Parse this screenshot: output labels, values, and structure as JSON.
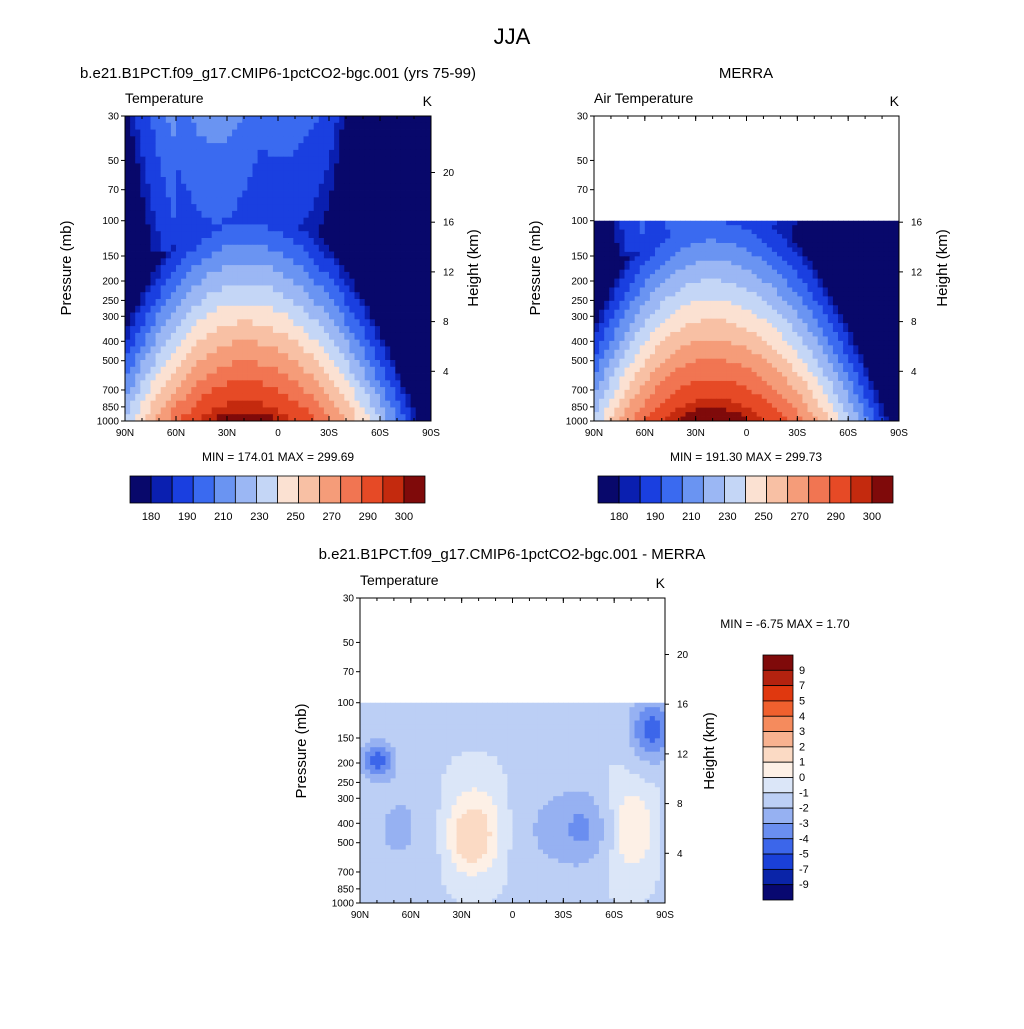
{
  "figure": {
    "title": "JJA"
  },
  "panels": [
    {
      "id": "model",
      "title": "b.e21.B1PCT.f09_g17.CMIP6-1pctCO2-bgc.001 (yrs 75-99)",
      "left_label": "Temperature",
      "right_label": "K",
      "ylabel": "Pressure (mb)",
      "ylabel_right": "Height (km)",
      "minmax": "MIN = 174.01  MAX = 299.69"
    },
    {
      "id": "obs",
      "title": "MERRA",
      "left_label": "Air Temperature",
      "right_label": "K",
      "ylabel": "Pressure (mb)",
      "ylabel_right": "Height (km)",
      "minmax": "MIN = 191.30  MAX = 299.73"
    },
    {
      "id": "diff",
      "title": "b.e21.B1PCT.f09_g17.CMIP6-1pctCO2-bgc.001 - MERRA",
      "left_label": "Temperature",
      "right_label": "K",
      "ylabel": "Pressure (mb)",
      "ylabel_right": "Height (km)",
      "minmax": "MIN =  -6.75  MAX =   1.70"
    }
  ],
  "chart_data": [
    {
      "type": "heatmap",
      "title": "b.e21.B1PCT.f09_g17.CMIP6-1pctCO2-bgc.001 (yrs 75-99)",
      "field": "Temperature",
      "units": "K",
      "xlabel": "",
      "ylabel": "Pressure (mb)",
      "ylabel_right": "Height (km)",
      "x_ticks": [
        "90N",
        "60N",
        "30N",
        "0",
        "30S",
        "60S",
        "90S"
      ],
      "y_ticks": [
        30,
        50,
        70,
        100,
        150,
        200,
        250,
        300,
        400,
        500,
        700,
        850,
        1000
      ],
      "y_right_ticks": [
        20,
        16,
        12,
        8,
        4
      ],
      "min": 174.01,
      "max": 299.69,
      "colorbar_ticks": [
        180,
        190,
        210,
        230,
        250,
        270,
        290,
        300
      ],
      "y_range_mb": [
        30,
        1000
      ],
      "data_top_mb": 30
    },
    {
      "type": "heatmap",
      "title": "MERRA",
      "field": "Air Temperature",
      "units": "K",
      "xlabel": "",
      "ylabel": "Pressure (mb)",
      "ylabel_right": "Height (km)",
      "x_ticks": [
        "90N",
        "60N",
        "30N",
        "0",
        "30S",
        "60S",
        "90S"
      ],
      "y_ticks": [
        30,
        50,
        70,
        100,
        150,
        200,
        250,
        300,
        400,
        500,
        700,
        850,
        1000
      ],
      "y_right_ticks": [
        16,
        12,
        8,
        4
      ],
      "min": 191.3,
      "max": 299.73,
      "colorbar_ticks": [
        180,
        190,
        210,
        230,
        250,
        270,
        290,
        300
      ],
      "y_range_mb": [
        30,
        1000
      ],
      "data_top_mb": 100
    },
    {
      "type": "heatmap",
      "title": "b.e21.B1PCT.f09_g17.CMIP6-1pctCO2-bgc.001 - MERRA",
      "field": "Temperature",
      "units": "K",
      "xlabel": "",
      "ylabel": "Pressure (mb)",
      "ylabel_right": "Height (km)",
      "x_ticks": [
        "90N",
        "60N",
        "30N",
        "0",
        "30S",
        "60S",
        "90S"
      ],
      "y_ticks": [
        30,
        50,
        70,
        100,
        150,
        200,
        250,
        300,
        400,
        500,
        700,
        850,
        1000
      ],
      "y_right_ticks": [
        20,
        16,
        12,
        8,
        4
      ],
      "min": -6.75,
      "max": 1.7,
      "colorbar_ticks": [
        9,
        7,
        5,
        4,
        3,
        2,
        1,
        0,
        -1,
        -2,
        -3,
        -4,
        -5,
        -7,
        -9
      ],
      "y_range_mb": [
        30,
        1000
      ],
      "data_top_mb": 100
    }
  ],
  "colors": {
    "abs_scale": [
      "#08086b",
      "#0a1fb0",
      "#1a3fe0",
      "#3a6af0",
      "#6a94f2",
      "#9bb7f4",
      "#c4d6f6",
      "#fbe1d2",
      "#f8c0a4",
      "#f59c79",
      "#f17552",
      "#e64a26",
      "#c42a0e",
      "#7f0a0a"
    ],
    "diff_scale": [
      "#7f0a0a",
      "#b3220f",
      "#e0380f",
      "#f0602e",
      "#f58b5d",
      "#f8b290",
      "#fbdac4",
      "#fdf0e6",
      "#dbe6f8",
      "#bccff5",
      "#96b1f2",
      "#6a8ef0",
      "#3c66ea",
      "#1a40d8",
      "#0a24a8",
      "#080870"
    ]
  }
}
